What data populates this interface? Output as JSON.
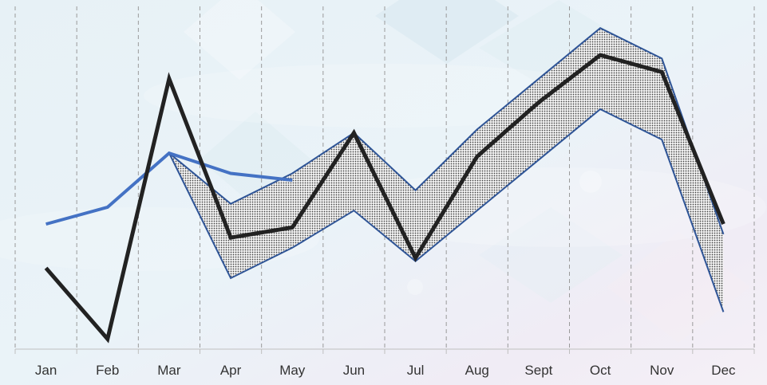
{
  "chart_data": {
    "type": "line",
    "categories": [
      "Jan",
      "Feb",
      "Mar",
      "Apr",
      "May",
      "Jun",
      "Jul",
      "Aug",
      "Sept",
      "Oct",
      "Nov",
      "Dec"
    ],
    "ylim": [
      0,
      100
    ],
    "grid": "vertical dashed",
    "legend": "none",
    "series": [
      {
        "kind": "line",
        "color": "#222222",
        "values": [
          24,
          3,
          80,
          33,
          36,
          64,
          27,
          57,
          73,
          87,
          82,
          37
        ]
      },
      {
        "kind": "line",
        "color": "#4472C4",
        "values": [
          37,
          42,
          58,
          52,
          50,
          null,
          null,
          null,
          null,
          null,
          null,
          null
        ]
      },
      {
        "kind": "band",
        "color": "#2F5597",
        "fill": "dotted",
        "upper": [
          null,
          null,
          58,
          43,
          52,
          64,
          47,
          65,
          80,
          95,
          86,
          34
        ],
        "lower": [
          null,
          null,
          58,
          21,
          30,
          41,
          26,
          41,
          56,
          71,
          62,
          11
        ]
      }
    ]
  }
}
